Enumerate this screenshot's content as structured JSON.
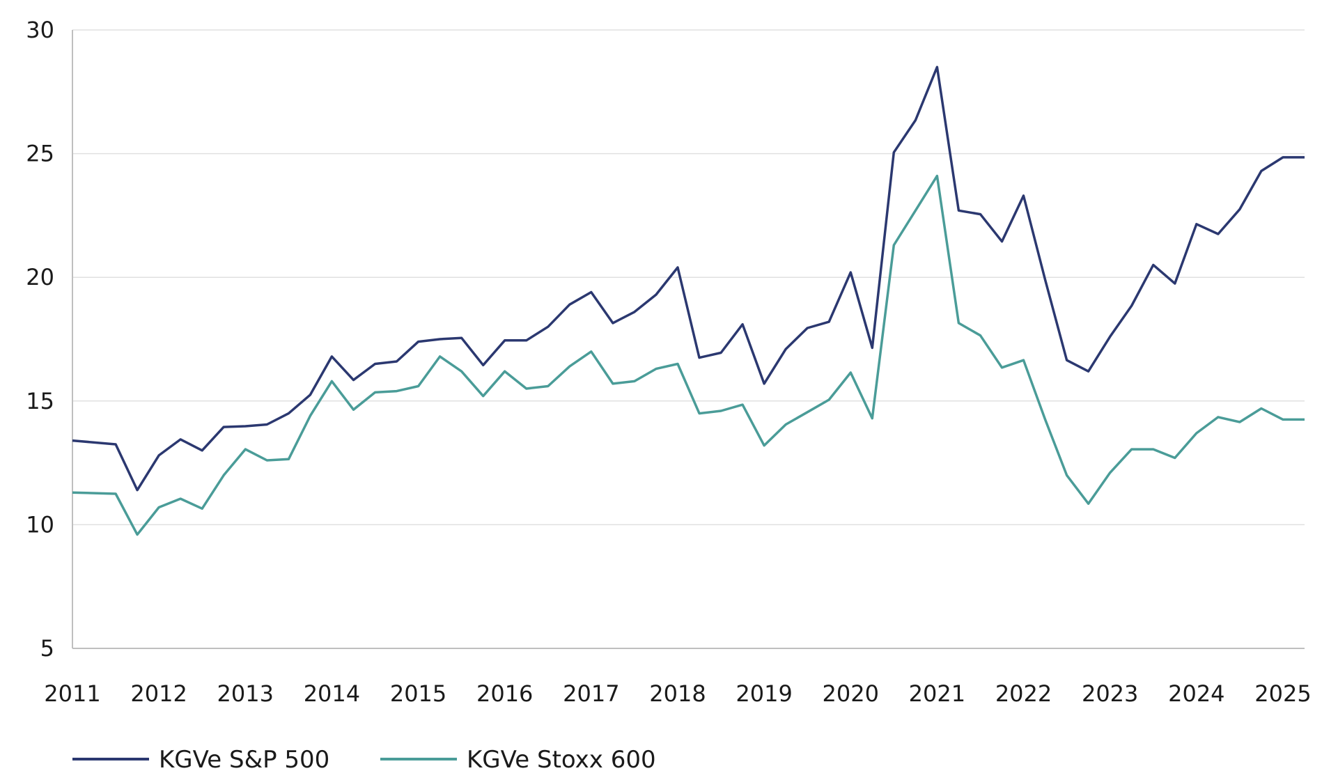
{
  "chart_data": {
    "type": "line",
    "title": "",
    "xlabel": "",
    "ylabel": "",
    "xlim": [
      2011.0,
      2025.25
    ],
    "ylim": [
      5,
      30
    ],
    "grid": true,
    "legend_position": "bottom-left",
    "yticks": [
      "5",
      "10",
      "15",
      "20",
      "25",
      "30"
    ],
    "xticks": [
      "2011",
      "2012",
      "2013",
      "2014",
      "2015",
      "2016",
      "2017",
      "2018",
      "2019",
      "2020",
      "2021",
      "2022",
      "2023",
      "2024",
      "2025"
    ],
    "x": [
      2011.0,
      2011.5,
      2011.75,
      2012.0,
      2012.25,
      2012.5,
      2012.75,
      2013.0,
      2013.25,
      2013.5,
      2013.75,
      2014.0,
      2014.25,
      2014.5,
      2014.75,
      2015.0,
      2015.25,
      2015.5,
      2015.75,
      2016.0,
      2016.25,
      2016.5,
      2016.75,
      2017.0,
      2017.25,
      2017.5,
      2017.75,
      2018.0,
      2018.25,
      2018.5,
      2018.75,
      2019.0,
      2019.25,
      2019.5,
      2019.75,
      2020.0,
      2020.25,
      2020.5,
      2020.75,
      2021.0,
      2021.25,
      2021.5,
      2021.75,
      2022.0,
      2022.25,
      2022.5,
      2022.75,
      2023.0,
      2023.25,
      2023.5,
      2023.75,
      2024.0,
      2024.25,
      2024.5,
      2024.75,
      2025.0,
      2025.25
    ],
    "series": [
      {
        "name": "KGVe S&P 500",
        "color": "#2b3870",
        "values": [
          13.4,
          13.25,
          11.4,
          12.8,
          13.45,
          13.0,
          13.95,
          13.98,
          14.05,
          14.5,
          15.25,
          16.8,
          15.85,
          16.5,
          16.6,
          17.4,
          17.5,
          17.55,
          16.45,
          17.45,
          17.45,
          18.0,
          18.9,
          19.4,
          18.15,
          18.6,
          19.3,
          20.4,
          16.75,
          16.95,
          18.1,
          15.7,
          17.1,
          17.95,
          18.2,
          20.2,
          17.15,
          25.05,
          26.35,
          28.5,
          22.7,
          22.55,
          21.45,
          23.3,
          19.9,
          16.65,
          16.2,
          17.6,
          18.85,
          20.5,
          19.75,
          22.15,
          21.75,
          22.75,
          24.3,
          24.85,
          24.85
        ]
      },
      {
        "name": "KGVe Stoxx 600",
        "color": "#4a9c98",
        "values": [
          11.3,
          11.25,
          9.6,
          10.7,
          11.05,
          10.65,
          12.0,
          13.05,
          12.6,
          12.65,
          14.4,
          15.8,
          14.65,
          15.35,
          15.4,
          15.6,
          16.8,
          16.2,
          15.2,
          16.2,
          15.5,
          15.6,
          16.4,
          17.0,
          15.7,
          15.8,
          16.3,
          16.5,
          14.5,
          14.6,
          14.85,
          13.2,
          14.05,
          14.55,
          15.05,
          16.15,
          14.3,
          21.3,
          22.7,
          24.1,
          18.15,
          17.65,
          16.35,
          16.65,
          14.25,
          12.0,
          10.85,
          12.1,
          13.05,
          13.05,
          12.7,
          13.7,
          14.35,
          14.15,
          14.7,
          14.25,
          14.25
        ]
      }
    ]
  }
}
